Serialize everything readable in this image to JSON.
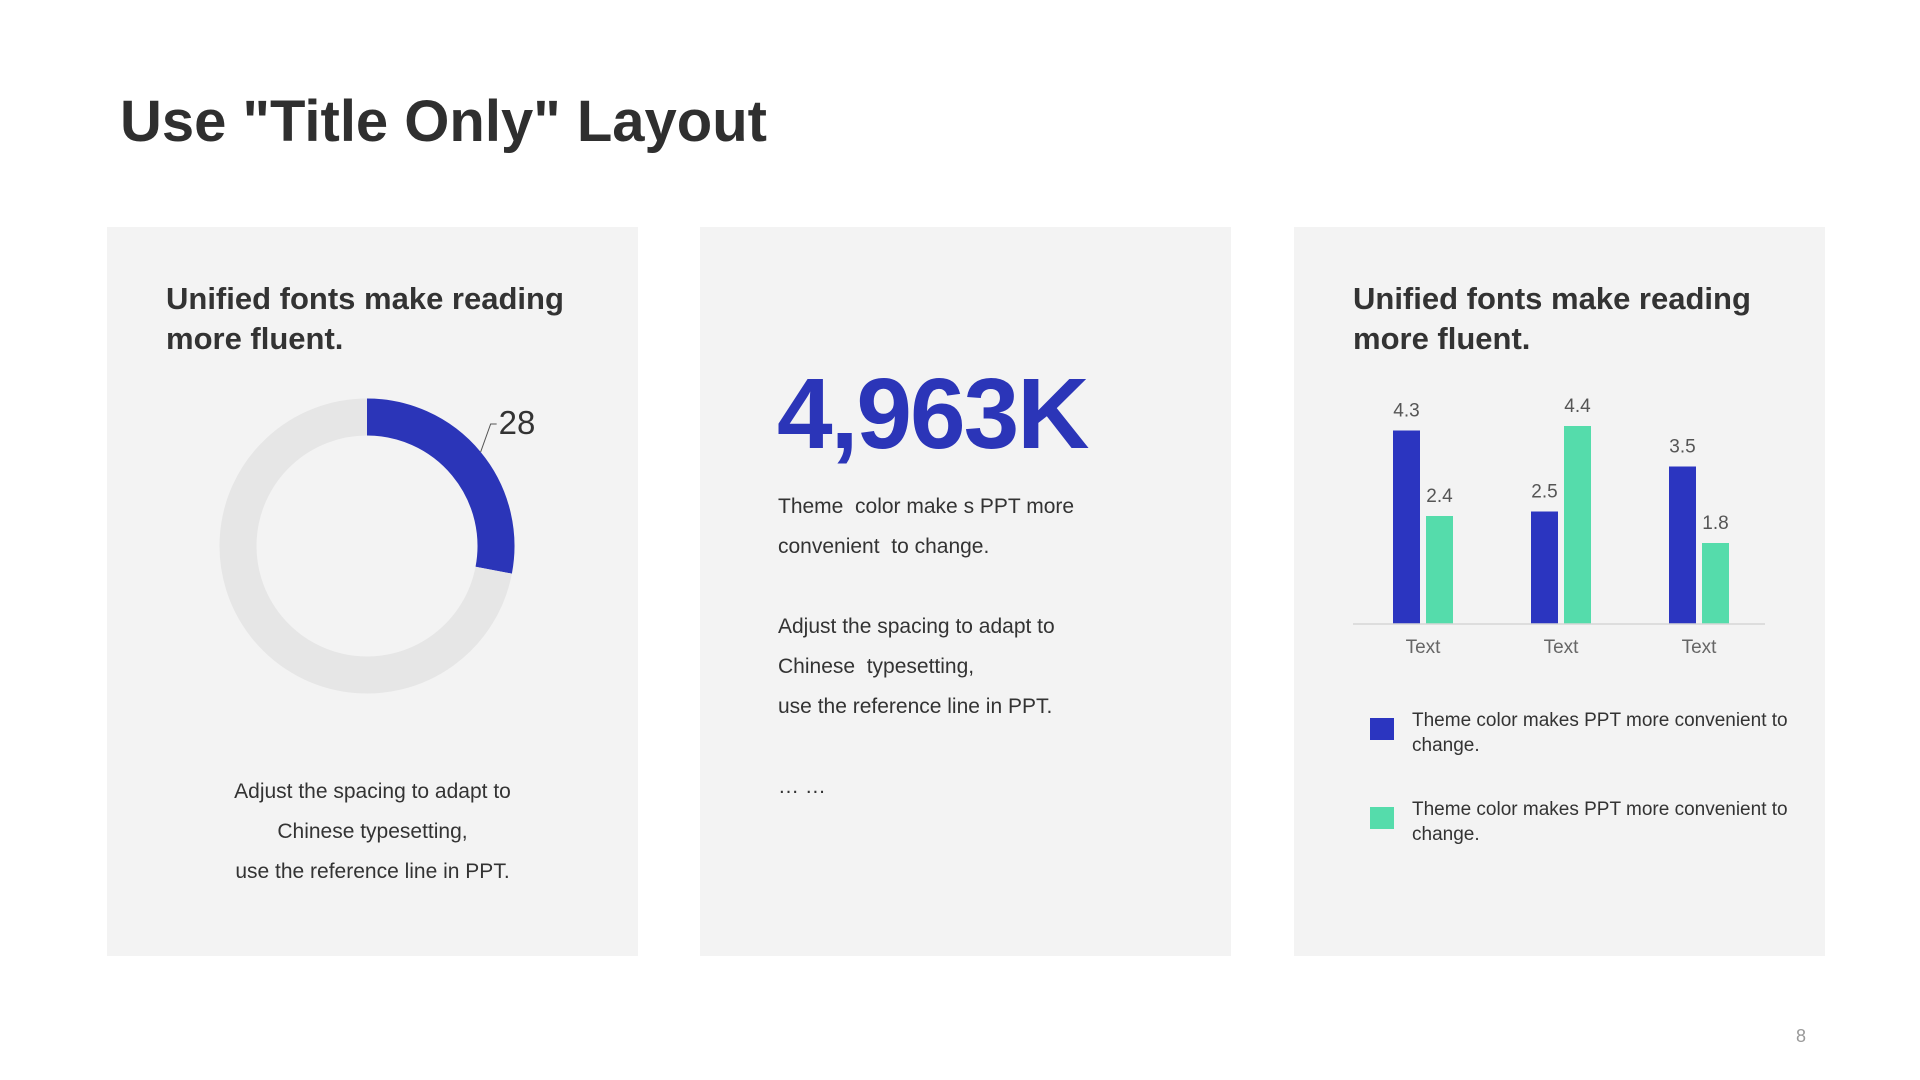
{
  "slide": {
    "title": "Use \"Title Only\" Layout",
    "page_number": "8"
  },
  "card1": {
    "heading": "Unified fonts make reading more fluent.",
    "lines": [
      "Adjust the spacing to adapt to",
      "Chinese  typesetting,",
      "use the reference line in PPT."
    ]
  },
  "card2": {
    "stat": "4,963K",
    "lines": [
      "Theme  color make s PPT more",
      "convenient  to change.",
      "Adjust the spacing to adapt to",
      "Chinese  typesetting,",
      "use the reference line in PPT.",
      "… …"
    ]
  },
  "card3": {
    "heading": "Unified fonts make reading more fluent."
  },
  "chart_data": [
    {
      "type": "pie",
      "variant": "donut",
      "values": [
        28,
        72
      ],
      "labels": [
        "28",
        ""
      ],
      "colors": [
        "#2b35b8",
        "#e6e6e6"
      ]
    },
    {
      "type": "bar",
      "categories": [
        "Text",
        "Text",
        "Text"
      ],
      "series": [
        {
          "values": [
            4.3,
            2.5,
            3.5
          ],
          "color": "#2b35c0",
          "legend_text": "Theme  color makes PPT more convenient  to change."
        },
        {
          "values": [
            2.4,
            4.4,
            1.8
          ],
          "color": "#55dcab",
          "legend_text": "Theme  color makes PPT more convenient  to change."
        }
      ],
      "ylim": [
        0,
        5
      ],
      "grid": false,
      "legend_position": "bottom-left"
    }
  ]
}
